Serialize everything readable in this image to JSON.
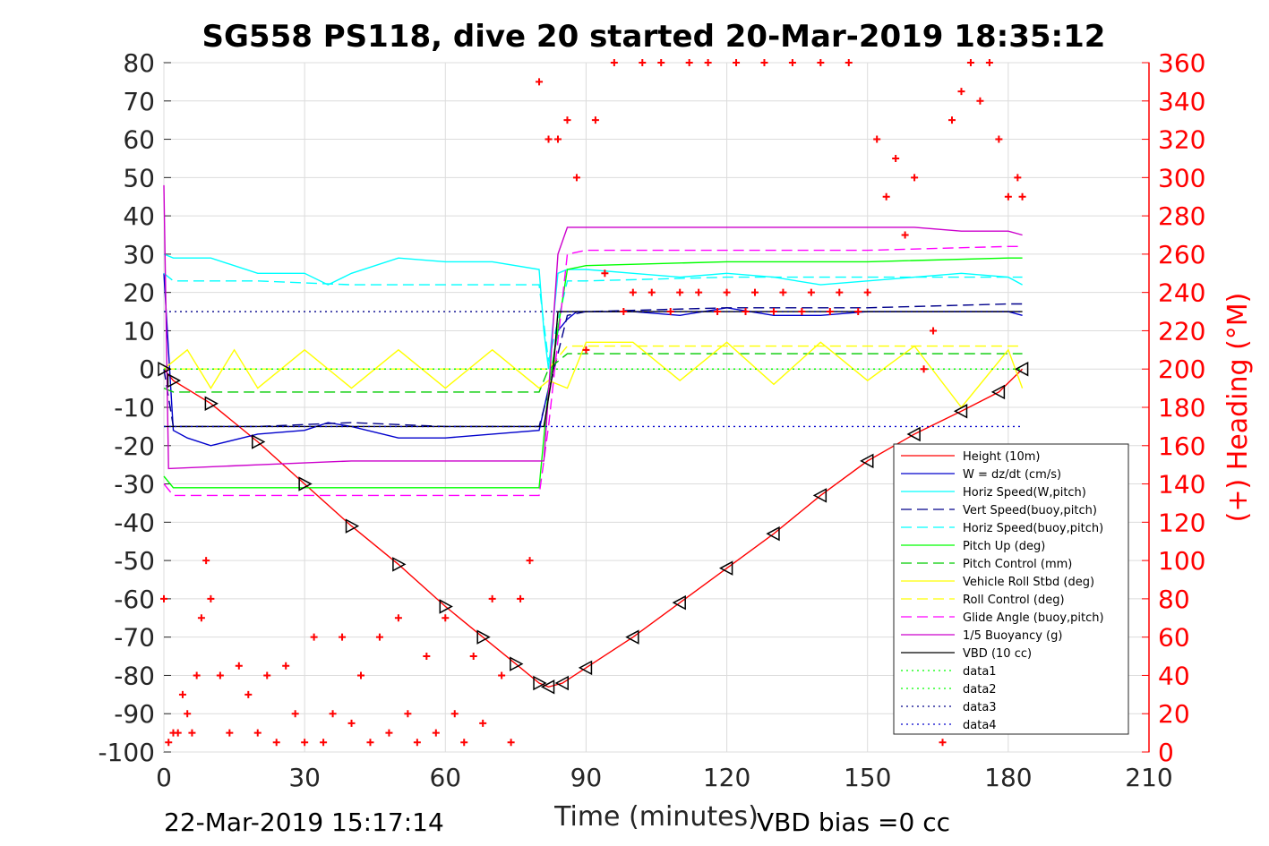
{
  "chart_data": {
    "type": "line",
    "title": "SG558 PS118, dive 20 started 20-Mar-2019 18:35:12",
    "xlabel": "Time (minutes)",
    "ylabel_right": "(+) Heading (°M)",
    "xlim": [
      0,
      210
    ],
    "ylim_left": [
      -100,
      80
    ],
    "ylim_right": [
      0,
      360
    ],
    "x_ticks": [
      "0",
      "30",
      "60",
      "90",
      "120",
      "150",
      "180",
      "210"
    ],
    "y_ticks_left": [
      "80",
      "70",
      "60",
      "50",
      "40",
      "30",
      "20",
      "10",
      "0",
      "-10",
      "-20",
      "-30",
      "-40",
      "-50",
      "-60",
      "-70",
      "-80",
      "-90",
      "-100"
    ],
    "y_ticks_right": [
      "360",
      "340",
      "320",
      "300",
      "280",
      "260",
      "240",
      "220",
      "200",
      "180",
      "160",
      "140",
      "120",
      "100",
      "80",
      "60",
      "40",
      "20",
      "0"
    ],
    "grid": true,
    "legend_position": "lower-right",
    "footer_left": "22-Mar-2019 15:17:14",
    "footer_right": "VBD bias =0 cc",
    "colors": {
      "height": "#ff0000",
      "w": "#0000cc",
      "horiz_speed": "#00ffff",
      "vert_speed_buoy": "#00008b",
      "horiz_speed_buoy": "#00ffff",
      "pitch": "#00ff00",
      "pitch_control": "#00cc00",
      "roll": "#ffff00",
      "roll_control": "#ffff00",
      "glide_angle": "#ff00ff",
      "buoyancy": "#cc00cc",
      "vbd": "#000000",
      "data1": "#00ff00",
      "data2": "#00ff00",
      "data3": "#00008b",
      "data4": "#0000cc",
      "heading": "#ff0000",
      "right_axis": "#ff0000"
    },
    "series": [
      {
        "name": "Height (10m)",
        "style": "solid",
        "x": [
          0,
          2,
          10,
          20,
          30,
          40,
          50,
          60,
          68,
          75,
          80,
          82,
          85,
          90,
          100,
          110,
          120,
          130,
          140,
          150,
          160,
          170,
          178,
          183
        ],
        "values": [
          0,
          -3,
          -9,
          -19,
          -30,
          -41,
          -51,
          -62,
          -70,
          -77,
          -82,
          -83,
          -82,
          -78,
          -70,
          -61,
          -52,
          -43,
          -33,
          -24,
          -17,
          -11,
          -6,
          0
        ]
      },
      {
        "name": "W = dz/dt (cm/s)",
        "style": "solid",
        "x": [
          0,
          2,
          5,
          10,
          20,
          30,
          35,
          40,
          50,
          60,
          70,
          80,
          82,
          84,
          86,
          88,
          90,
          100,
          110,
          120,
          130,
          140,
          150,
          160,
          170,
          180,
          183
        ],
        "values": [
          25,
          -16,
          -18,
          -20,
          -17,
          -16,
          -14,
          -15,
          -18,
          -18,
          -17,
          -16,
          -5,
          10,
          13,
          15,
          15,
          15,
          14,
          16,
          14,
          14,
          15,
          15,
          15,
          15,
          14
        ]
      },
      {
        "name": "Horiz Speed(W,pitch)",
        "style": "solid",
        "x": [
          0,
          2,
          10,
          20,
          30,
          35,
          40,
          50,
          60,
          70,
          80,
          81,
          82,
          84,
          86,
          90,
          100,
          110,
          120,
          130,
          140,
          150,
          160,
          170,
          180,
          183
        ],
        "values": [
          30,
          29,
          29,
          25,
          25,
          22,
          25,
          29,
          28,
          28,
          26,
          10,
          0,
          25,
          26,
          26,
          25,
          24,
          25,
          24,
          22,
          23,
          24,
          25,
          24,
          22
        ]
      },
      {
        "name": "Vert Speed(buoy,pitch)",
        "style": "dash",
        "x": [
          0,
          2,
          20,
          40,
          60,
          80,
          82,
          86,
          90,
          120,
          150,
          180,
          183
        ],
        "values": [
          0,
          -15,
          -15,
          -14,
          -15,
          -15,
          -6,
          14,
          15,
          16,
          16,
          17,
          17
        ]
      },
      {
        "name": "Horiz Speed(buoy,pitch)",
        "style": "dash",
        "x": [
          0,
          2,
          20,
          40,
          60,
          80,
          82,
          86,
          90,
          120,
          150,
          180,
          183
        ],
        "values": [
          25,
          23,
          23,
          22,
          22,
          22,
          2,
          23,
          23,
          24,
          24,
          24,
          24
        ]
      },
      {
        "name": "Pitch Up (deg)",
        "style": "solid",
        "x": [
          0,
          2,
          20,
          40,
          60,
          80,
          82,
          86,
          90,
          120,
          150,
          180,
          183
        ],
        "values": [
          -28,
          -31,
          -31,
          -31,
          -31,
          -31,
          -5,
          26,
          27,
          28,
          28,
          29,
          29
        ]
      },
      {
        "name": "Pitch Control (mm)",
        "style": "dash",
        "x": [
          0,
          2,
          20,
          40,
          60,
          80,
          82,
          86,
          90,
          120,
          150,
          180,
          183
        ],
        "values": [
          -5,
          -6,
          -6,
          -6,
          -6,
          -6,
          0,
          4,
          4,
          4,
          4,
          4,
          4
        ]
      },
      {
        "name": "Vehicle Roll Stbd (deg)",
        "style": "solid",
        "x": [
          0,
          5,
          10,
          15,
          20,
          30,
          40,
          50,
          60,
          70,
          80,
          82,
          86,
          90,
          100,
          110,
          120,
          130,
          140,
          150,
          160,
          170,
          180,
          183
        ],
        "values": [
          0,
          5,
          -5,
          5,
          -5,
          5,
          -5,
          5,
          -5,
          5,
          -5,
          -3,
          -5,
          7,
          7,
          -3,
          7,
          -4,
          7,
          -3,
          6,
          -10,
          5,
          -5
        ]
      },
      {
        "name": "Roll Control (deg)",
        "style": "dash",
        "x": [
          0,
          2,
          40,
          80,
          82,
          86,
          90,
          120,
          150,
          180,
          183
        ],
        "values": [
          0,
          0,
          0,
          0,
          0,
          6,
          6,
          6,
          6,
          6,
          6
        ]
      },
      {
        "name": "Glide Angle (buoy,pitch)",
        "style": "dash",
        "x": [
          0,
          2,
          20,
          40,
          60,
          80,
          82,
          86,
          90,
          120,
          150,
          180,
          183
        ],
        "values": [
          -30,
          -33,
          -33,
          -33,
          -33,
          -33,
          -15,
          30,
          31,
          31,
          31,
          32,
          32
        ]
      },
      {
        "name": "1/5 Buoyancy (g)",
        "style": "solid",
        "x": [
          0,
          1,
          20,
          40,
          60,
          80,
          81,
          84,
          86,
          90,
          120,
          150,
          160,
          170,
          180,
          183
        ],
        "values": [
          48,
          -26,
          -25,
          -24,
          -24,
          -24,
          -24,
          30,
          37,
          37,
          37,
          37,
          37,
          36,
          36,
          35
        ]
      },
      {
        "name": "VBD (10 cc)",
        "style": "solid",
        "x": [
          0,
          1,
          80,
          81,
          83,
          84,
          86,
          90,
          120,
          150,
          180,
          183
        ],
        "values": [
          -15,
          -15,
          -15,
          -15,
          0,
          15,
          15,
          15,
          15,
          15,
          15,
          15
        ]
      },
      {
        "name": "data1",
        "style": "dot",
        "x": [
          0,
          183
        ],
        "values": [
          0,
          0
        ]
      },
      {
        "name": "data2",
        "style": "dot",
        "x": [
          0,
          183
        ],
        "values": [
          0,
          0
        ]
      },
      {
        "name": "data3",
        "style": "dot",
        "x": [
          0,
          183
        ],
        "values": [
          15,
          15
        ]
      },
      {
        "name": "data4",
        "style": "dot",
        "x": [
          0,
          183
        ],
        "values": [
          -15,
          -15
        ]
      }
    ],
    "heading": {
      "axis": "right",
      "x": [
        0,
        1,
        2,
        3,
        4,
        5,
        6,
        7,
        8,
        9,
        10,
        12,
        14,
        16,
        18,
        20,
        22,
        24,
        26,
        28,
        30,
        32,
        34,
        36,
        38,
        40,
        42,
        44,
        46,
        48,
        50,
        52,
        54,
        56,
        58,
        60,
        62,
        64,
        66,
        68,
        70,
        72,
        74,
        76,
        78,
        80,
        82,
        84,
        86,
        88,
        90,
        92,
        94,
        96,
        98,
        100,
        102,
        104,
        106,
        108,
        110,
        112,
        114,
        116,
        118,
        120,
        122,
        124,
        126,
        128,
        130,
        132,
        134,
        136,
        138,
        140,
        142,
        144,
        146,
        148,
        150,
        152,
        154,
        156,
        158,
        160,
        162,
        164,
        166,
        168,
        170,
        172,
        174,
        176,
        178,
        180,
        182,
        183
      ],
      "values": [
        80,
        5,
        10,
        10,
        30,
        20,
        10,
        40,
        70,
        100,
        80,
        40,
        10,
        45,
        30,
        10,
        40,
        5,
        45,
        20,
        5,
        60,
        5,
        20,
        60,
        15,
        40,
        5,
        60,
        10,
        70,
        20,
        5,
        50,
        10,
        70,
        20,
        5,
        50,
        15,
        80,
        40,
        5,
        80,
        100,
        350,
        320,
        320,
        330,
        300,
        210,
        330,
        250,
        360,
        230,
        240,
        360,
        240,
        360,
        230,
        240,
        360,
        240,
        360,
        230,
        240,
        360,
        230,
        240,
        360,
        230,
        240,
        360,
        230,
        240,
        360,
        230,
        240,
        360,
        230,
        240,
        320,
        290,
        310,
        270,
        300,
        200,
        220,
        5,
        330,
        345,
        360,
        340,
        360,
        320,
        290,
        300,
        290
      ]
    }
  },
  "legend_items": [
    {
      "label": "Height (10m)",
      "color": "#ff0000",
      "style": "solid"
    },
    {
      "label": "W = dz/dt (cm/s)",
      "color": "#0000cc",
      "style": "solid"
    },
    {
      "label": "Horiz Speed(W,pitch)",
      "color": "#00ffff",
      "style": "solid"
    },
    {
      "label": "Vert Speed(buoy,pitch)",
      "color": "#00008b",
      "style": "dash"
    },
    {
      "label": "Horiz Speed(buoy,pitch)",
      "color": "#00ffff",
      "style": "dash"
    },
    {
      "label": "Pitch Up (deg)",
      "color": "#00ff00",
      "style": "solid"
    },
    {
      "label": "Pitch Control (mm)",
      "color": "#00cc00",
      "style": "dash"
    },
    {
      "label": "Vehicle Roll Stbd (deg)",
      "color": "#ffff00",
      "style": "solid"
    },
    {
      "label": "Roll Control (deg)",
      "color": "#ffff00",
      "style": "dash"
    },
    {
      "label": "Glide Angle (buoy,pitch)",
      "color": "#ff00ff",
      "style": "dash"
    },
    {
      "label": "1/5 Buoyancy (g)",
      "color": "#cc00cc",
      "style": "solid"
    },
    {
      "label": "VBD (10 cc)",
      "color": "#000000",
      "style": "solid"
    },
    {
      "label": "data1",
      "color": "#00ff00",
      "style": "dot"
    },
    {
      "label": "data2",
      "color": "#00ff00",
      "style": "dot"
    },
    {
      "label": "data3",
      "color": "#00008b",
      "style": "dot"
    },
    {
      "label": "data4",
      "color": "#0000cc",
      "style": "dot"
    }
  ]
}
